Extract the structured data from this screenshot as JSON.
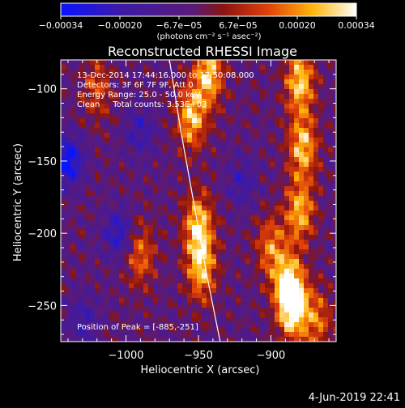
{
  "colorbar": {
    "ticks": [
      "−0.00034",
      "−0.00020",
      "−6.7e−05",
      "6.7e−05",
      "0.00020",
      "0.00034"
    ],
    "units": "(photons cm⁻² s⁻¹ asec⁻²)"
  },
  "footer": {
    "date": "4-Jun-2019 22:41"
  },
  "chart_data": {
    "type": "heatmap",
    "title": "Reconstructed RHESSI Image",
    "xlabel": "Heliocentric X (arcsec)",
    "ylabel": "Heliocentric Y (arcsec)",
    "xlim": [
      -1045,
      -855
    ],
    "ylim": [
      -275,
      -80
    ],
    "x_ticks": [
      -1000,
      -950,
      -900
    ],
    "y_ticks": [
      -100,
      -150,
      -200,
      -250
    ],
    "x_tick_labels": [
      "−1000",
      "−950",
      "−900"
    ],
    "y_tick_labels": [
      "−100",
      "−150",
      "−200",
      "−250"
    ],
    "colorbar_range": [
      -0.00034,
      0.00034
    ],
    "colormap": "blue-purple-red-orange-yellow-white",
    "info_lines": [
      "13-Dec-2014 17:44:16.000 to 17:50:08.000",
      "Detectors: 3F 6F 7F 9F, Att 0",
      "Energy Range: 25.0 - 50.0 keV",
      "Clean     Total counts: 3.53E+03"
    ],
    "peak_label": "Position of Peak = [-885,-251]",
    "peak": {
      "x": -885,
      "y": -251
    },
    "limb_curve": [
      [
        -970,
        -80
      ],
      [
        -962,
        -130
      ],
      [
        -953,
        -180
      ],
      [
        -944,
        -230
      ],
      [
        -935,
        -275
      ]
    ],
    "bright_sources": [
      {
        "x": -943,
        "y": -90,
        "intensity": 0.85
      },
      {
        "x": -955,
        "y": -120,
        "intensity": 0.8
      },
      {
        "x": -950,
        "y": -195,
        "intensity": 0.85
      },
      {
        "x": -948,
        "y": -225,
        "intensity": 0.75
      },
      {
        "x": -990,
        "y": -215,
        "intensity": 0.55
      },
      {
        "x": -1020,
        "y": -100,
        "intensity": 0.45
      },
      {
        "x": -880,
        "y": -95,
        "intensity": 0.85
      },
      {
        "x": -878,
        "y": -140,
        "intensity": 0.8
      },
      {
        "x": -880,
        "y": -185,
        "intensity": 0.75
      },
      {
        "x": -888,
        "y": -235,
        "intensity": 0.75
      },
      {
        "x": -885,
        "y": -251,
        "intensity": 1.0
      },
      {
        "x": -900,
        "y": -210,
        "intensity": 0.6
      },
      {
        "x": -868,
        "y": -260,
        "intensity": 0.55
      }
    ],
    "dark_sources": [
      {
        "x": -1040,
        "y": -150,
        "intensity": 0.9
      },
      {
        "x": -1005,
        "y": -200,
        "intensity": 0.6
      },
      {
        "x": -990,
        "y": -130,
        "intensity": 0.45
      },
      {
        "x": -920,
        "y": -165,
        "intensity": 0.4
      },
      {
        "x": -1030,
        "y": -260,
        "intensity": 0.4
      }
    ]
  }
}
